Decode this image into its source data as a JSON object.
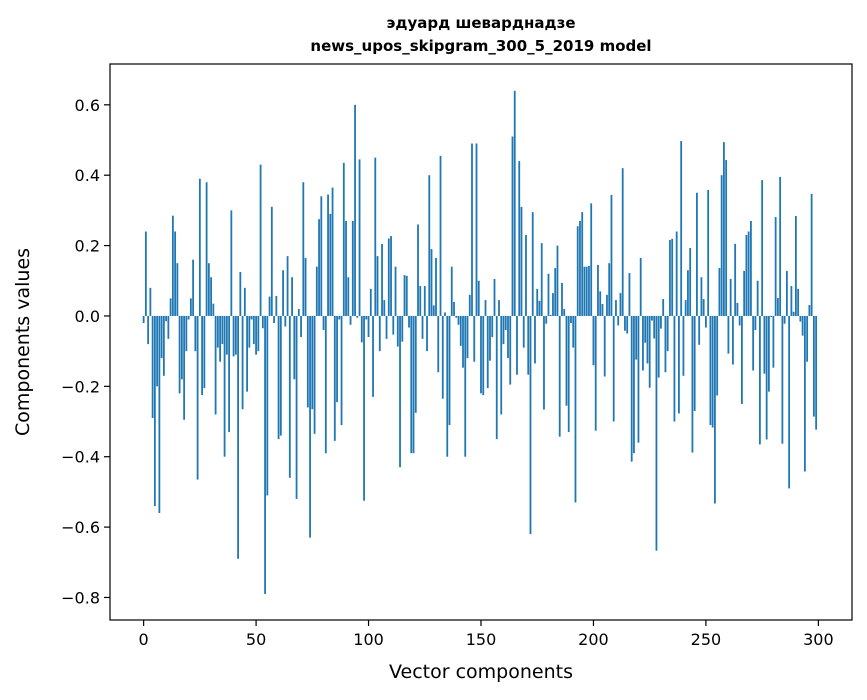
{
  "chart_data": {
    "type": "bar",
    "title": [
      "эдуард шеварднадзе",
      "news_upos_skipgram_300_5_2019 model"
    ],
    "xlabel": "Vector components",
    "ylabel": "Components values",
    "xlim": [
      -14.95,
      314.95
    ],
    "ylim": [
      -0.864,
      0.716
    ],
    "xticks": [
      0,
      50,
      100,
      150,
      200,
      250,
      300
    ],
    "xtick_labels": [
      "0",
      "50",
      "100",
      "150",
      "200",
      "250",
      "300"
    ],
    "yticks": [
      -0.8,
      -0.6,
      -0.4,
      -0.2,
      0.0,
      0.2,
      0.4,
      0.6
    ],
    "ytick_labels": [
      "−0.8",
      "−0.6",
      "−0.4",
      "−0.2",
      "0.0",
      "0.2",
      "0.4",
      "0.6"
    ],
    "grid": false,
    "bar_color": "#1f77b4",
    "values": [
      -0.02,
      0.24,
      -0.08,
      0.08,
      -0.29,
      -0.54,
      -0.2,
      -0.56,
      -0.12,
      -0.17,
      -0.015,
      -0.065,
      0.05,
      0.285,
      0.24,
      0.15,
      -0.22,
      -0.18,
      -0.295,
      -0.1,
      -0.01,
      0.05,
      0.16,
      -0.1,
      -0.465,
      0.39,
      -0.225,
      -0.205,
      0.38,
      0.15,
      0.11,
      0.035,
      -0.28,
      -0.09,
      -0.13,
      -0.08,
      -0.4,
      -0.11,
      -0.33,
      0.3,
      -0.115,
      -0.11,
      -0.69,
      0.125,
      -0.265,
      0.08,
      -0.215,
      -0.09,
      -0.01,
      -0.08,
      -0.11,
      -0.1,
      0.43,
      -0.035,
      -0.79,
      -0.51,
      0.055,
      0.31,
      -0.02,
      0.057,
      -0.35,
      -0.34,
      0.13,
      -0.03,
      0.17,
      -0.46,
      0.11,
      -0.18,
      -0.52,
      0.02,
      -0.06,
      0.38,
      0.165,
      -0.26,
      -0.63,
      -0.265,
      -0.335,
      0.14,
      0.275,
      0.34,
      -0.04,
      -0.39,
      0.345,
      0.29,
      0.365,
      -0.355,
      -0.245,
      -0.01,
      -0.31,
      0.435,
      0.27,
      0.11,
      -0.025,
      0.27,
      0.6,
      -0.005,
      0.445,
      -0.075,
      -0.525,
      -0.01,
      -0.06,
      0.077,
      -0.23,
      0.45,
      0.17,
      -0.1,
      0.205,
      0.045,
      -0.065,
      0.22,
      0.227,
      -0.053,
      0.14,
      -0.087,
      -0.43,
      -0.073,
      0.116,
      0.114,
      -0.033,
      -0.39,
      -0.39,
      -0.275,
      0.26,
      0.085,
      -0.065,
      0.085,
      -0.1,
      0.4,
      0.19,
      0.03,
      0.165,
      -0.16,
      0.455,
      -0.235,
      0.01,
      -0.4,
      -0.31,
      0.14,
      0.04,
      -0.005,
      -0.025,
      -0.085,
      -0.147,
      -0.4,
      -0.12,
      0.06,
      0.49,
      -0.13,
      0.49,
      0.1,
      -0.22,
      -0.225,
      0.045,
      -0.205,
      -0.127,
      -0.06,
      0.105,
      -0.35,
      0.045,
      -0.28,
      -0.08,
      -0.04,
      -0.12,
      -0.195,
      0.51,
      0.64,
      -0.167,
      0.44,
      0.31,
      -0.09,
      0.23,
      -0.167,
      -0.62,
      0.295,
      -0.135,
      0.077,
      0.043,
      0.207,
      -0.266,
      -0.022,
      0.12,
      0.003,
      0.065,
      0.136,
      0.2,
      -0.343,
      0.094,
      0.02,
      -0.255,
      -0.33,
      -0.02,
      -0.09,
      -0.53,
      0.255,
      0.27,
      0.295,
      0.14,
      0.14,
      0.142,
      0.32,
      -0.14,
      -0.326,
      0.145,
      0.07,
      0.034,
      -0.172,
      0.06,
      0.15,
      0.344,
      -0.3,
      0.045,
      -0.027,
      0.065,
      0.42,
      -0.042,
      -0.05,
      0.122,
      -0.414,
      -0.39,
      -0.124,
      -0.36,
      0.165,
      -0.155,
      -0.076,
      -0.135,
      -0.204,
      -0.013,
      -0.064,
      -0.667,
      -0.175,
      -0.036,
      0.048,
      -0.16,
      -0.1,
      0.216,
      0.219,
      -0.3,
      0.24,
      -0.277,
      0.497,
      -0.17,
      0.045,
      0.13,
      0.193,
      -0.388,
      -0.27,
      0.35,
      -0.082,
      0.11,
      0.048,
      -0.033,
      0.358,
      -0.31,
      -0.317,
      -0.533,
      -0.226,
      0.136,
      0.4,
      0.494,
      0.443,
      -0.107,
      0.105,
      -0.138,
      0.205,
      0.037,
      -0.027,
      -0.25,
      0.128,
      0.23,
      0.24,
      0.27,
      -0.155,
      -0.04,
      0.1,
      -0.365,
      0.386,
      -0.164,
      -0.351,
      -0.215,
      -0.003,
      -0.147,
      0.281,
      0.051,
      0.395,
      -0.363,
      -0.022,
      0.128,
      -0.49,
      0.085,
      0.012,
      0.284,
      0.077,
      -0.016,
      -0.056,
      -0.442,
      -0.13,
      0.031,
      0.347,
      -0.286,
      -0.323
    ]
  }
}
